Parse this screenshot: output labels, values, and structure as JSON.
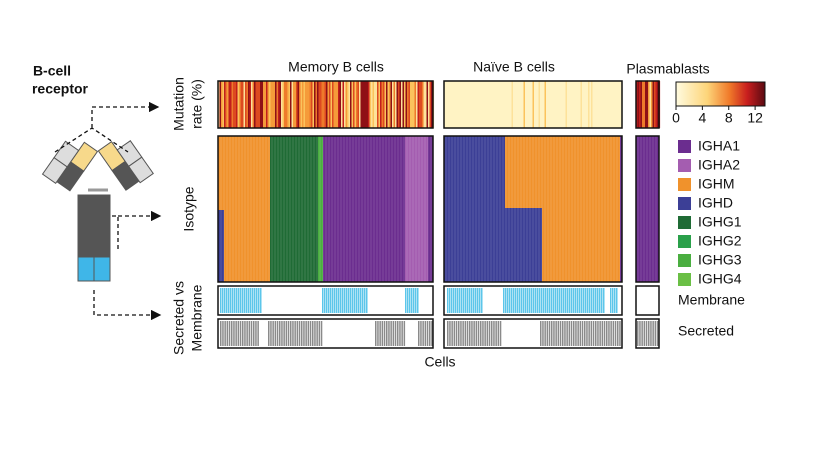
{
  "receptor_label": [
    "B-cell",
    "receptor"
  ],
  "columns": [
    "Memory B cells",
    "Naïve B cells",
    "Plasmablasts"
  ],
  "rows": [
    [
      "Mutation",
      "rate (%)"
    ],
    [
      "Isotype"
    ],
    [
      "Secreted vs",
      "Membrane"
    ]
  ],
  "colorbar": {
    "ticks": [
      0,
      4,
      8,
      12
    ]
  },
  "isotype_legend": [
    {
      "name": "IGHA1",
      "color": "#6b2d8f"
    },
    {
      "name": "IGHA2",
      "color": "#a45db0"
    },
    {
      "name": "IGHM",
      "color": "#f0922c"
    },
    {
      "name": "IGHD",
      "color": "#3c3f96"
    },
    {
      "name": "IGHG1",
      "color": "#1f6b35"
    },
    {
      "name": "IGHG2",
      "color": "#2aa04a"
    },
    {
      "name": "IGHG3",
      "color": "#4aae40"
    },
    {
      "name": "IGHG4",
      "color": "#6abf45"
    }
  ],
  "secretion_legend": [
    "Membrane",
    "Secreted"
  ],
  "x_label": "Cells"
}
